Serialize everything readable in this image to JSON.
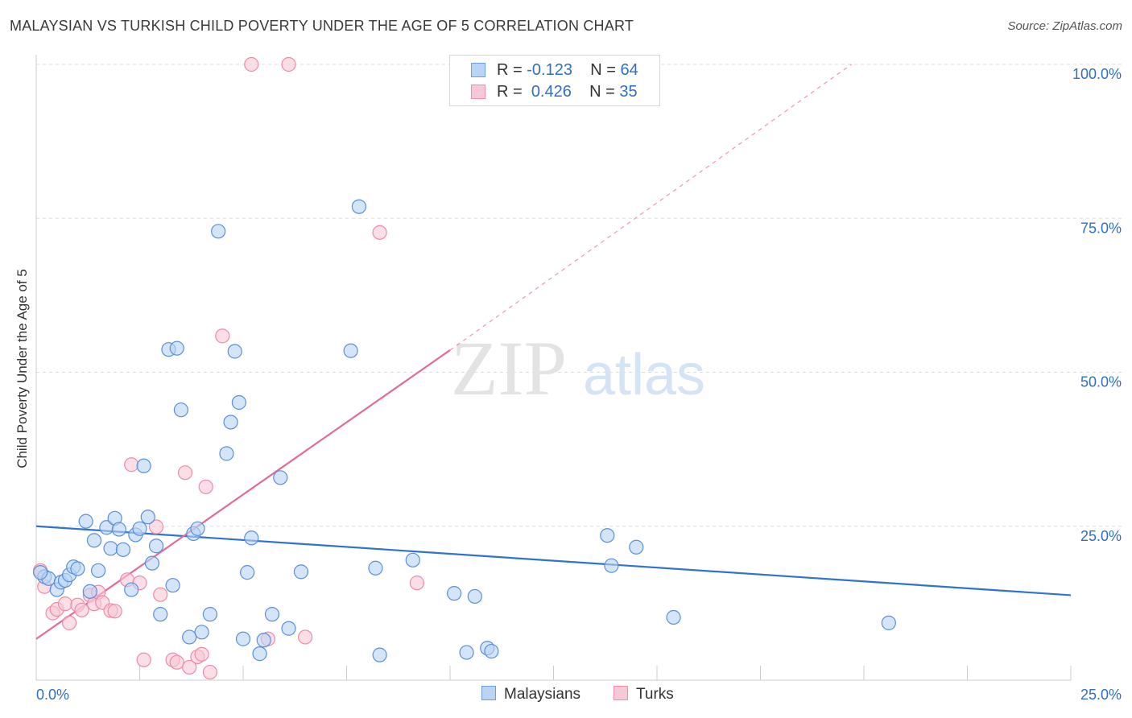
{
  "title": "MALAYSIAN VS TURKISH CHILD POVERTY UNDER THE AGE OF 5 CORRELATION CHART",
  "source": "Source: ZipAtlas.com",
  "watermark": {
    "zip": "ZIP",
    "atlas": "atlas"
  },
  "legend_top": [
    {
      "r_label": "R = ",
      "r_value": "-0.123",
      "n_label": "N = ",
      "n_value": "64",
      "fill": "#b9d4f5",
      "stroke": "#6d9ee0"
    },
    {
      "r_label": "R = ",
      "r_value": "0.426",
      "n_label": "N = ",
      "n_value": "35",
      "fill": "#f9c8d6",
      "stroke": "#ef8fab"
    }
  ],
  "legend_bottom": [
    {
      "label": "Malaysians",
      "fill": "#b9d4f5",
      "stroke": "#6d9ee0"
    },
    {
      "label": "Turks",
      "fill": "#f9c8d6",
      "stroke": "#ef8fab"
    }
  ],
  "colors": {
    "blue_fill": "#b9d4f5",
    "blue_stroke": "#5b8fd8",
    "blue_line": "#2f72d0",
    "pink_fill": "#f9c8d6",
    "pink_stroke": "#ee8aa8",
    "pink_line": "#e46b93",
    "axis_text": "#2f6fc4",
    "grid": "#dddddd"
  },
  "chart_data": {
    "type": "scatter",
    "title": "MALAYSIAN VS TURKISH CHILD POVERTY UNDER THE AGE OF 5 CORRELATION CHART",
    "xlabel": "",
    "ylabel": "Child Poverty Under the Age of 5",
    "xlim": [
      0,
      25
    ],
    "ylim": [
      0,
      100
    ],
    "x_ticks": [
      "0.0%",
      "25.0%"
    ],
    "y_ticks": [
      {
        "value": 25,
        "label": "25.0%"
      },
      {
        "value": 50,
        "label": "50.0%"
      },
      {
        "value": 75,
        "label": "75.0%"
      },
      {
        "value": 100,
        "label": "100.0%"
      }
    ],
    "grid": true,
    "legend": "top-center",
    "series": [
      {
        "name": "Malaysians",
        "r": -0.123,
        "n": 64,
        "trend": {
          "x": [
            0,
            25
          ],
          "y": [
            25.0,
            13.8
          ]
        },
        "points": [
          [
            0.2,
            16.8
          ],
          [
            0.3,
            16.5
          ],
          [
            0.5,
            14.7
          ],
          [
            0.6,
            15.9
          ],
          [
            0.7,
            16.2
          ],
          [
            0.8,
            17.1
          ],
          [
            0.9,
            18.4
          ],
          [
            1.0,
            18.1
          ],
          [
            1.2,
            25.8
          ],
          [
            1.3,
            14.4
          ],
          [
            1.5,
            17.8
          ],
          [
            1.4,
            22.7
          ],
          [
            1.7,
            24.8
          ],
          [
            1.8,
            21.4
          ],
          [
            1.9,
            26.3
          ],
          [
            2.0,
            24.5
          ],
          [
            2.1,
            21.2
          ],
          [
            2.3,
            14.7
          ],
          [
            2.4,
            23.6
          ],
          [
            2.5,
            24.6
          ],
          [
            2.6,
            34.8
          ],
          [
            2.7,
            26.5
          ],
          [
            2.8,
            19.0
          ],
          [
            2.9,
            21.8
          ],
          [
            3.0,
            10.7
          ],
          [
            3.2,
            53.7
          ],
          [
            3.3,
            15.4
          ],
          [
            3.4,
            53.9
          ],
          [
            3.5,
            43.9
          ],
          [
            3.7,
            7.0
          ],
          [
            3.8,
            23.8
          ],
          [
            3.9,
            24.6
          ],
          [
            4.0,
            7.8
          ],
          [
            4.2,
            10.7
          ],
          [
            4.4,
            72.9
          ],
          [
            4.6,
            36.8
          ],
          [
            4.7,
            41.9
          ],
          [
            4.8,
            53.4
          ],
          [
            4.9,
            45.1
          ],
          [
            5.0,
            6.7
          ],
          [
            5.1,
            17.5
          ],
          [
            5.2,
            23.1
          ],
          [
            5.4,
            4.3
          ],
          [
            5.5,
            6.5
          ],
          [
            5.9,
            32.9
          ],
          [
            5.7,
            10.7
          ],
          [
            6.1,
            8.4
          ],
          [
            6.4,
            17.6
          ],
          [
            7.6,
            53.5
          ],
          [
            7.8,
            76.9
          ],
          [
            8.2,
            18.2
          ],
          [
            8.3,
            4.1
          ],
          [
            9.1,
            19.5
          ],
          [
            10.1,
            14.1
          ],
          [
            10.4,
            4.5
          ],
          [
            10.6,
            13.6
          ],
          [
            10.9,
            5.2
          ],
          [
            11.0,
            4.7
          ],
          [
            13.8,
            23.5
          ],
          [
            13.9,
            18.6
          ],
          [
            14.5,
            21.6
          ],
          [
            15.4,
            10.2
          ],
          [
            20.6,
            9.3
          ],
          [
            0.1,
            17.5
          ]
        ]
      },
      {
        "name": "Turks",
        "r": 0.426,
        "n": 35,
        "trend": {
          "x": [
            0,
            10
          ],
          "y": [
            6.7,
            53.6
          ]
        },
        "trend_extension": {
          "x": [
            10,
            19.7
          ],
          "y": [
            53.6,
            100
          ]
        },
        "points": [
          [
            0.1,
            17.8
          ],
          [
            0.2,
            15.2
          ],
          [
            0.4,
            10.9
          ],
          [
            0.5,
            11.5
          ],
          [
            0.7,
            12.4
          ],
          [
            0.8,
            9.3
          ],
          [
            1.0,
            12.2
          ],
          [
            1.1,
            11.4
          ],
          [
            1.3,
            13.8
          ],
          [
            1.4,
            12.4
          ],
          [
            1.5,
            14.3
          ],
          [
            1.6,
            12.6
          ],
          [
            1.8,
            11.3
          ],
          [
            1.9,
            11.2
          ],
          [
            2.2,
            16.3
          ],
          [
            2.3,
            35.0
          ],
          [
            2.5,
            15.8
          ],
          [
            2.6,
            3.3
          ],
          [
            2.9,
            24.9
          ],
          [
            3.0,
            13.9
          ],
          [
            3.3,
            3.3
          ],
          [
            3.4,
            2.9
          ],
          [
            3.6,
            33.7
          ],
          [
            3.7,
            2.1
          ],
          [
            3.9,
            3.8
          ],
          [
            4.0,
            4.2
          ],
          [
            4.1,
            31.4
          ],
          [
            4.2,
            1.3
          ],
          [
            4.5,
            55.9
          ],
          [
            5.2,
            100
          ],
          [
            5.6,
            6.7
          ],
          [
            6.1,
            100
          ],
          [
            6.5,
            7.0
          ],
          [
            8.3,
            72.7
          ],
          [
            9.2,
            15.8
          ]
        ]
      }
    ]
  }
}
